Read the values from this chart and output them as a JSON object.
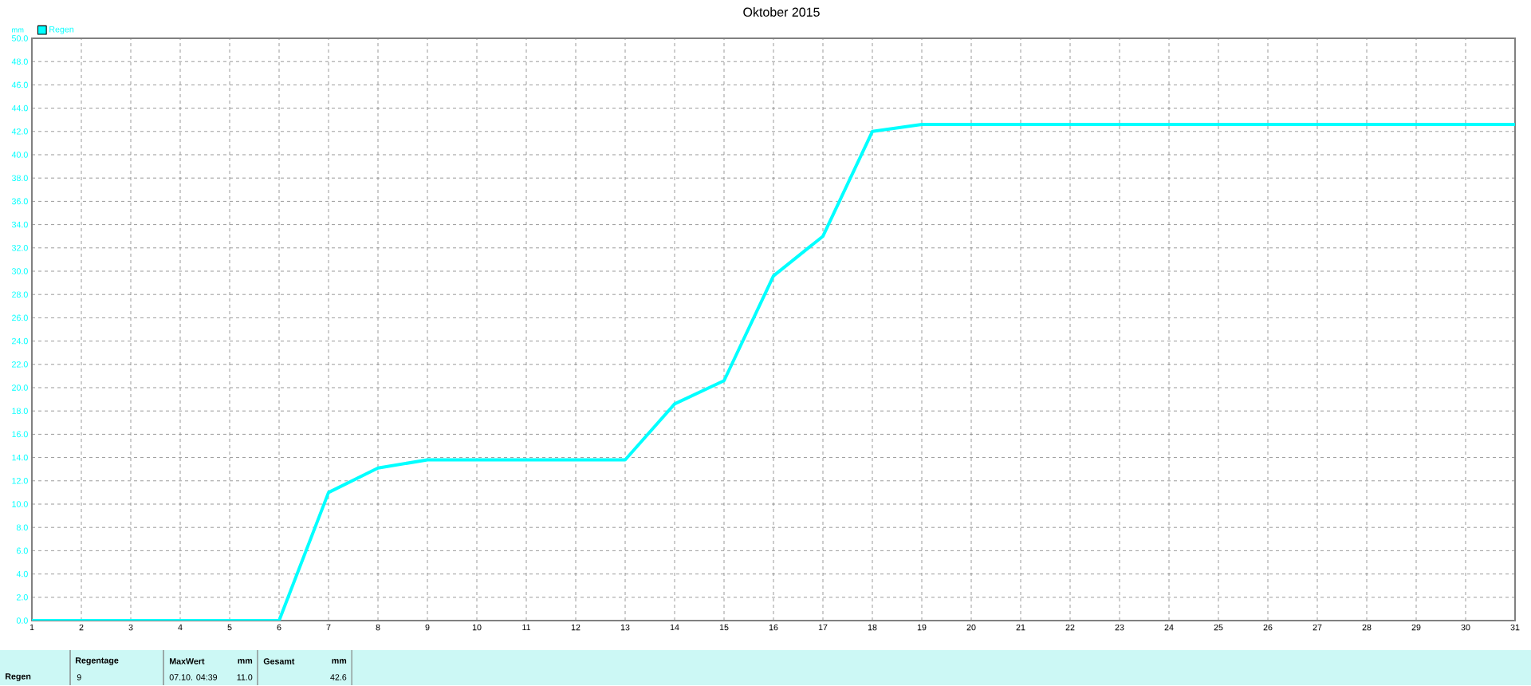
{
  "chart_data": {
    "type": "line",
    "title": "Oktober 2015",
    "ylabel": "mm",
    "x": [
      1,
      2,
      3,
      4,
      5,
      6,
      7,
      8,
      9,
      10,
      11,
      12,
      13,
      14,
      15,
      16,
      17,
      18,
      19,
      20,
      21,
      22,
      23,
      24,
      25,
      26,
      27,
      28,
      29,
      30,
      31
    ],
    "series": [
      {
        "name": "Regen",
        "color": "#00ffff",
        "values": [
          0,
          0,
          0,
          0,
          0,
          0,
          11.0,
          13.1,
          13.8,
          13.8,
          13.8,
          13.8,
          13.8,
          18.6,
          20.6,
          29.6,
          33.0,
          42.0,
          42.6,
          42.6,
          42.6,
          42.6,
          42.6,
          42.6,
          42.6,
          42.6,
          42.6,
          42.6,
          42.6,
          42.6,
          42.6
        ]
      }
    ],
    "xlim": [
      1,
      31
    ],
    "xticks": [
      1,
      2,
      3,
      4,
      5,
      6,
      7,
      8,
      9,
      10,
      11,
      12,
      13,
      14,
      15,
      16,
      17,
      18,
      19,
      20,
      21,
      22,
      23,
      24,
      25,
      26,
      27,
      28,
      29,
      30,
      31
    ],
    "ylim": [
      0,
      50
    ],
    "yticks": [
      {
        "value": 0,
        "label": "0.0"
      },
      {
        "value": 2,
        "label": "2.0"
      },
      {
        "value": 4,
        "label": "4.0"
      },
      {
        "value": 6,
        "label": "6.0"
      },
      {
        "value": 8,
        "label": "8.0"
      },
      {
        "value": 10,
        "label": "10.0"
      },
      {
        "value": 12,
        "label": "12.0"
      },
      {
        "value": 14,
        "label": "14.0"
      },
      {
        "value": 16,
        "label": "16.0"
      },
      {
        "value": 18,
        "label": "18.0"
      },
      {
        "value": 20,
        "label": "20.0"
      },
      {
        "value": 22,
        "label": "22.0"
      },
      {
        "value": 24,
        "label": "24.0"
      },
      {
        "value": 26,
        "label": "26.0"
      },
      {
        "value": 28,
        "label": "28.0"
      },
      {
        "value": 30,
        "label": "30.0"
      },
      {
        "value": 32,
        "label": "32.0"
      },
      {
        "value": 34,
        "label": "34.0"
      },
      {
        "value": 36,
        "label": "36.0"
      },
      {
        "value": 38,
        "label": "38.0"
      },
      {
        "value": 40,
        "label": "40.0"
      },
      {
        "value": 42,
        "label": "42.0"
      },
      {
        "value": 44,
        "label": "44.0"
      },
      {
        "value": 46,
        "label": "46.0"
      },
      {
        "value": 48,
        "label": "48.0"
      },
      {
        "value": 50,
        "label": "50.0"
      }
    ],
    "grid": true,
    "legend": "top left",
    "marker": "none",
    "line_style": "solid",
    "annotations": [
      "Regen",
      "Regentage",
      "9",
      "MaxWert",
      "mm",
      "07.10.  04:39",
      "11.0",
      "Gesamt",
      "mm",
      "42.6"
    ]
  }
}
